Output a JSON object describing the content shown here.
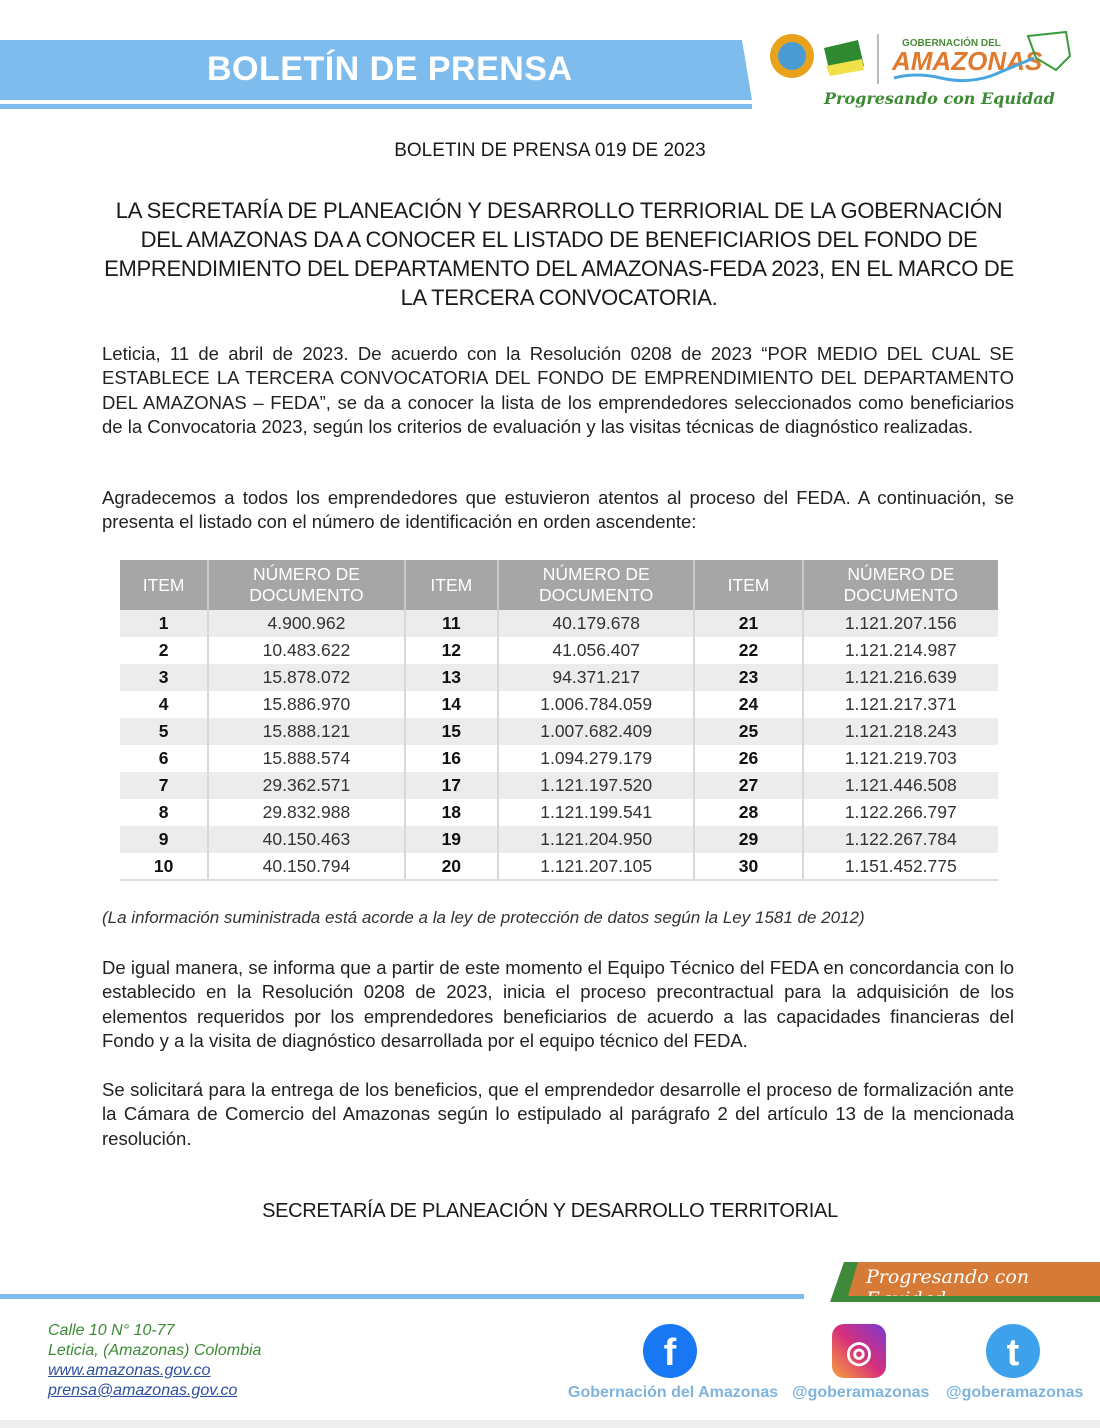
{
  "header": {
    "title": "BOLETÍN DE PRENSA",
    "logo": {
      "line1": "GOBERNACIÓN DEL",
      "line2": "AMAZONAS",
      "slogan": "Progresando con Equidad"
    }
  },
  "bulletin_number": "BOLETIN DE PRENSA 019 DE 2023",
  "headline": "LA SECRETARÍA DE PLANEACIÓN Y DESARROLLO TERRIORIAL DE LA GOBERNACIÓN DEL AMAZONAS DA A CONOCER EL LISTADO DE BENEFICIARIOS DEL FONDO DE EMPRENDIMIENTO DEL DEPARTAMENTO DEL AMAZONAS-FEDA 2023, EN EL MARCO DE LA TERCERA CONVOCATORIA.",
  "paragraphs": [
    "Leticia, 11 de abril de 2023. De acuerdo con la Resolución 0208 de 2023 “POR MEDIO DEL CUAL SE ESTABLECE LA TERCERA CONVOCATORIA DEL FONDO DE EMPRENDIMIENTO DEL DEPARTAMENTO DEL AMAZONAS – FEDA”, se da a conocer la lista de los emprendedores seleccionados como beneficiarios de la Convocatoria 2023, según los criterios de evaluación y las visitas técnicas de diagnóstico realizadas.",
    "Agradecemos a todos los emprendedores que estuvieron atentos al proceso del FEDA. A continuación, se presenta el listado con el número de identificación en orden ascendente:",
    "De igual manera, se informa que a partir de este momento el Equipo Técnico del FEDA en concordancia con lo establecido en la Resolución 0208 de 2023, inicia el proceso precontractual para la adquisición de los elementos requeridos por los emprendedores beneficiarios de acuerdo a las capacidades financieras del Fondo y a la visita de diagnóstico desarrollada por el equipo técnico del FEDA.",
    "Se solicitará para la entrega de los beneficios, que el emprendedor desarrolle el proceso de formalización ante la Cámara de Comercio del Amazonas según lo estipulado al parágrafo 2 del artículo 13 de la mencionada resolución."
  ],
  "table": {
    "headers": [
      "ITEM",
      "NÚMERO DE DOCUMENTO",
      "ITEM",
      "NÚMERO DE DOCUMENTO",
      "ITEM",
      "NÚMERO DE DOCUMENTO"
    ],
    "rows": [
      [
        "1",
        "4.900.962",
        "11",
        "40.179.678",
        "21",
        "1.121.207.156"
      ],
      [
        "2",
        "10.483.622",
        "12",
        "41.056.407",
        "22",
        "1.121.214.987"
      ],
      [
        "3",
        "15.878.072",
        "13",
        "94.371.217",
        "23",
        "1.121.216.639"
      ],
      [
        "4",
        "15.886.970",
        "14",
        "1.006.784.059",
        "24",
        "1.121.217.371"
      ],
      [
        "5",
        "15.888.121",
        "15",
        "1.007.682.409",
        "25",
        "1.121.218.243"
      ],
      [
        "6",
        "15.888.574",
        "16",
        "1.094.279.179",
        "26",
        "1.121.219.703"
      ],
      [
        "7",
        "29.362.571",
        "17",
        "1.121.197.520",
        "27",
        "1.121.446.508"
      ],
      [
        "8",
        "29.832.988",
        "18",
        "1.121.199.541",
        "28",
        "1.122.266.797"
      ],
      [
        "9",
        "40.150.463",
        "19",
        "1.121.204.950",
        "29",
        "1.122.267.784"
      ],
      [
        "10",
        "40.150.794",
        "20",
        "1.121.207.105",
        "30",
        "1.151.452.775"
      ]
    ]
  },
  "note": "(La información suministrada está acorde a la ley de protección de datos según la Ley 1581 de 2012)",
  "signature": "SECRETARÍA DE PLANEACIÓN Y DESARROLLO TERRITORIAL",
  "footer": {
    "slogan": "Progresando con Equidad",
    "address": "Calle 10 N° 10-77",
    "city": "Leticia, (Amazonas) Colombia",
    "website": "www.amazonas.gov.co",
    "email": "prensa@amazonas.gov.co",
    "social": [
      {
        "icon": "facebook-icon",
        "label": "Gobernación del Amazonas",
        "color": "#1877f2"
      },
      {
        "icon": "instagram-icon",
        "label": "@goberamazonas",
        "color": "#d6307a"
      },
      {
        "icon": "twitter-icon",
        "label": "@goberamazonas",
        "color": "#3ea1ec"
      }
    ]
  }
}
